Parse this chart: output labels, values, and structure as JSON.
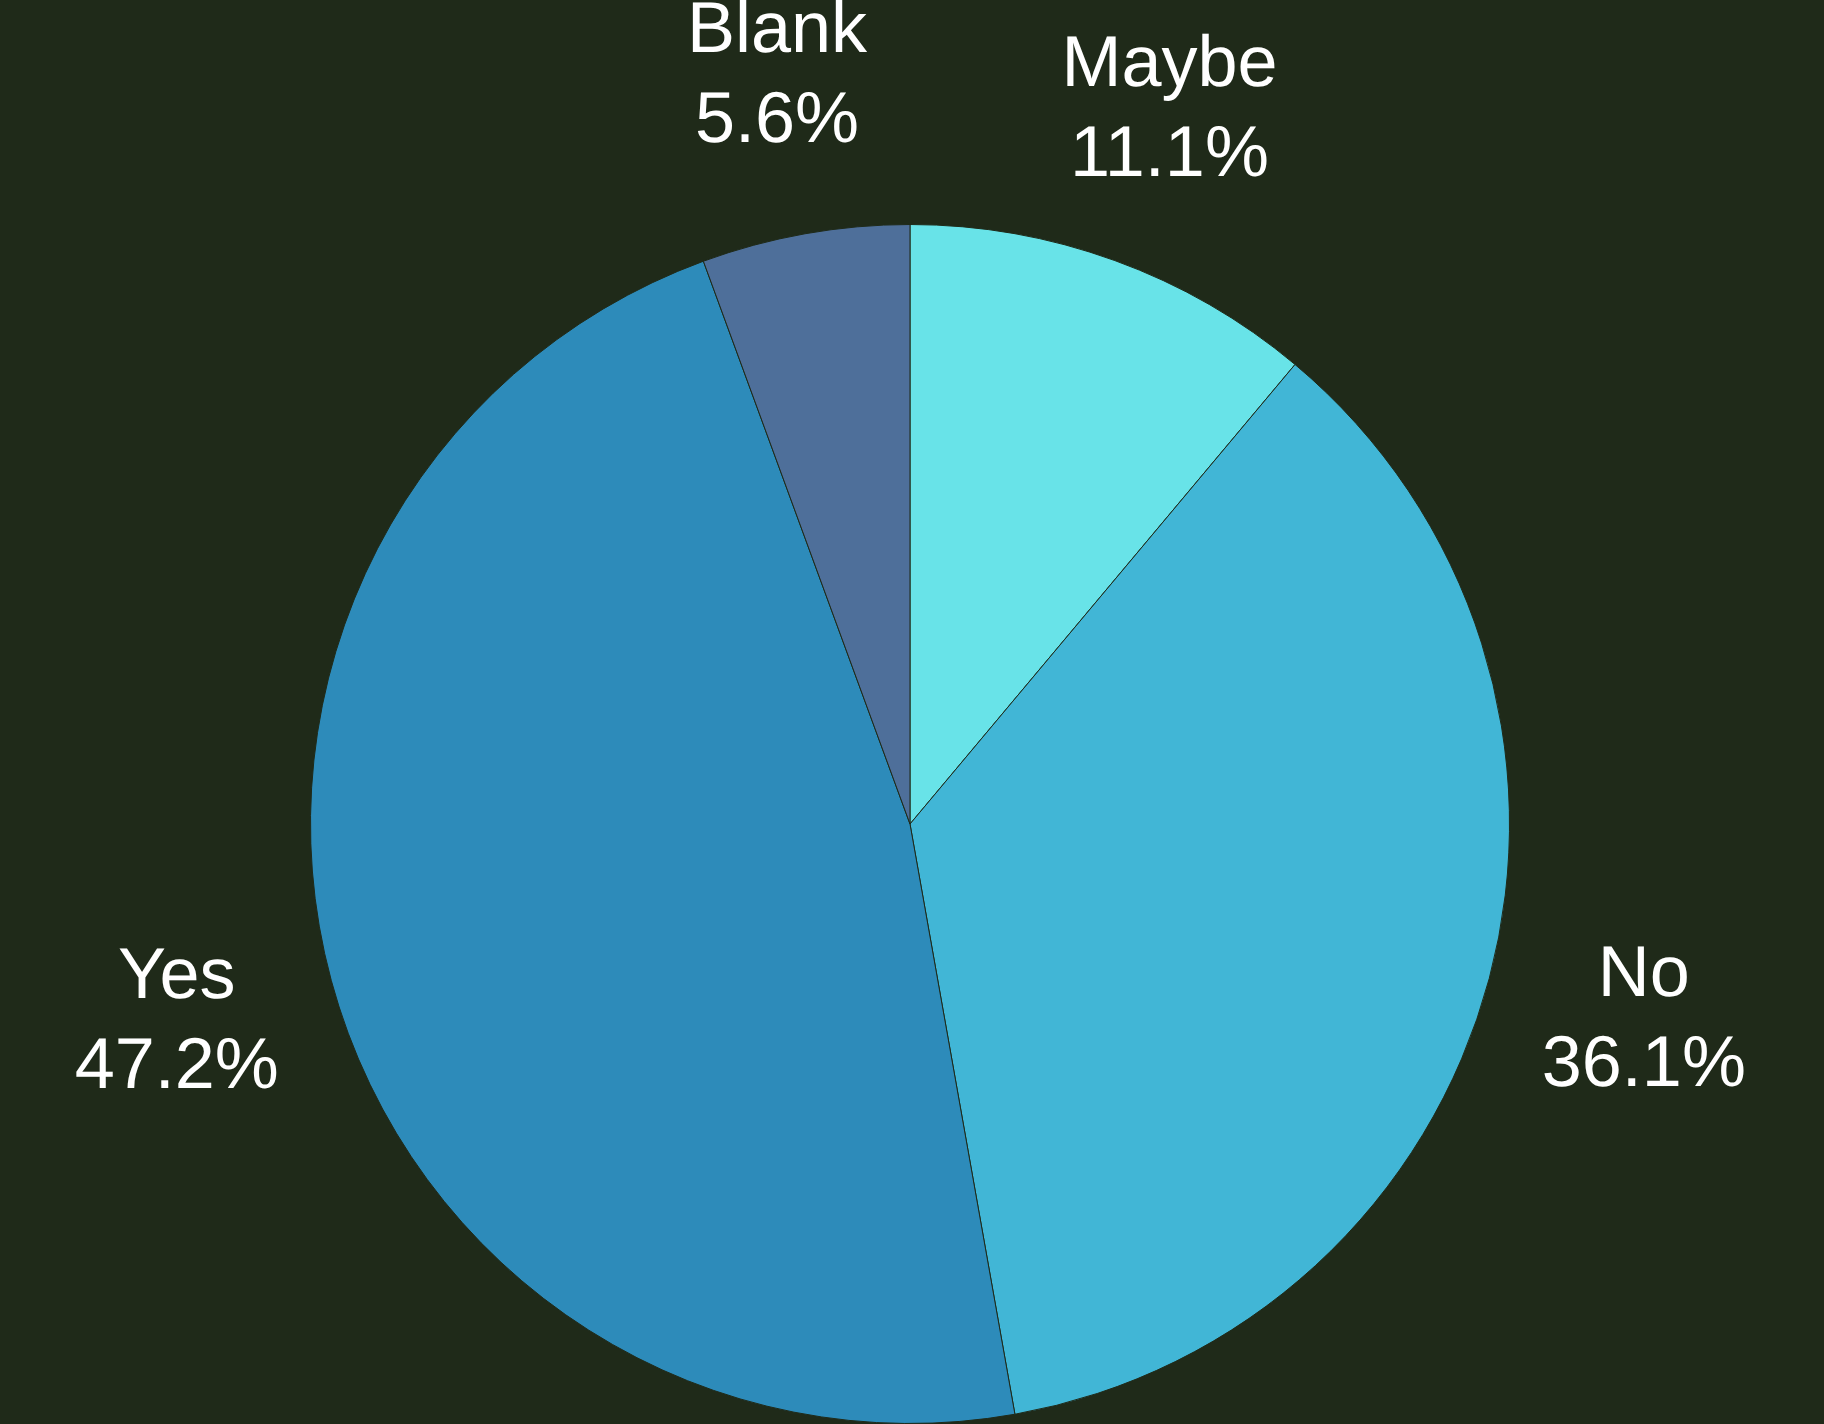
{
  "chart_data": {
    "type": "pie",
    "categories": [
      "Maybe",
      "No",
      "Yes",
      "Blank"
    ],
    "values": [
      11.1,
      36.1,
      47.2,
      5.6
    ],
    "colors": [
      "#68e3e8",
      "#41b6d6",
      "#2d8bba",
      "#4e6f9a"
    ],
    "value_labels": [
      "11.1%",
      "36.1%",
      "47.2%",
      "5.6%"
    ],
    "legend": false
  }
}
